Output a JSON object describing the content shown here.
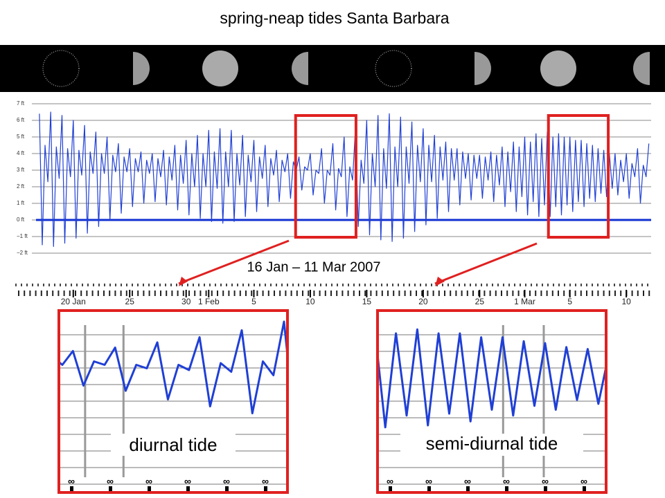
{
  "chart_data": {
    "type": "line",
    "title": "spring-neap tides Santa Barbara",
    "subtitle": "16 Jan – 11 Mar 2007",
    "color": "#1f3fd6",
    "baseline": 0,
    "baseline_color": "#1030d0",
    "grid": true,
    "xlim": [
      16.7,
      71.2
    ],
    "ylim": [
      -2,
      7
    ],
    "xticks": [
      {
        "value": 20,
        "label": "20 Jan"
      },
      25,
      30,
      {
        "value": 32,
        "label": "1 Feb"
      },
      {
        "value": 36,
        "label": "5"
      },
      {
        "value": 41,
        "label": "10"
      },
      {
        "value": 46,
        "label": "15"
      },
      {
        "value": 51,
        "label": "20"
      },
      {
        "value": 56,
        "label": "25"
      },
      {
        "value": 60,
        "label": "1 Mar"
      },
      {
        "value": 64,
        "label": "5"
      },
      {
        "value": 69,
        "label": "10"
      }
    ],
    "yticks": [
      {
        "value": 7,
        "label": "7 ft"
      },
      {
        "value": 6,
        "label": "6 ft"
      },
      {
        "value": 5,
        "label": "5 ft"
      },
      {
        "value": 4,
        "label": "4 ft"
      },
      {
        "value": 3,
        "label": "3 ft"
      },
      {
        "value": 2,
        "label": "2 ft"
      },
      {
        "value": 1,
        "label": "1 ft"
      },
      {
        "value": 0,
        "label": "0 ft"
      },
      {
        "value": -1,
        "label": "−1 ft"
      },
      {
        "value": -2,
        "label": "−2 ft"
      }
    ],
    "highlight_color": "#e02020",
    "highlights": [
      {
        "label": "diurnal tide",
        "xlim": [
          39.7,
          45.05
        ],
        "ylim": [
          -0.5,
          5.5
        ]
      },
      {
        "label": "semi-diurnal tide",
        "xlim": [
          62.1,
          67.4
        ],
        "ylim": [
          0.3,
          5.6
        ]
      }
    ],
    "x": [
      17,
      17.25,
      17.5,
      17.75,
      18,
      18.25,
      18.5,
      18.75,
      19,
      19.25,
      19.5,
      19.75,
      20,
      20.25,
      20.5,
      20.75,
      21,
      21.25,
      21.5,
      21.75,
      22,
      22.25,
      22.5,
      22.75,
      23,
      23.25,
      23.5,
      23.75,
      24,
      24.25,
      24.5,
      24.75,
      25,
      25.25,
      25.5,
      25.75,
      26,
      26.25,
      26.5,
      26.75,
      27,
      27.25,
      27.5,
      27.75,
      28,
      28.25,
      28.5,
      28.75,
      29,
      29.25,
      29.5,
      29.75,
      30,
      30.25,
      30.5,
      30.75,
      31,
      31.25,
      31.5,
      31.75,
      32,
      32.25,
      32.5,
      32.75,
      33,
      33.25,
      33.5,
      33.75,
      34,
      34.25,
      34.5,
      34.75,
      35,
      35.25,
      35.5,
      35.75,
      36,
      36.25,
      36.5,
      36.75,
      37,
      37.25,
      37.5,
      37.75,
      38,
      38.25,
      38.5,
      38.75,
      39,
      39.25,
      39.5,
      39.75,
      40,
      40.25,
      40.5,
      40.75,
      41,
      41.25,
      41.5,
      41.75,
      42,
      42.25,
      42.5,
      42.75,
      43,
      43.25,
      43.5,
      43.75,
      44,
      44.25,
      44.5,
      44.75,
      45,
      45.25,
      45.5,
      45.75,
      46,
      46.25,
      46.5,
      46.75,
      47,
      47.25,
      47.5,
      47.75,
      48,
      48.25,
      48.5,
      48.75,
      49,
      49.25,
      49.5,
      49.75,
      50,
      50.25,
      50.5,
      50.75,
      51,
      51.25,
      51.5,
      51.75,
      52,
      52.25,
      52.5,
      52.75,
      53,
      53.25,
      53.5,
      53.75,
      54,
      54.25,
      54.5,
      54.75,
      55,
      55.25,
      55.5,
      55.75,
      56,
      56.25,
      56.5,
      56.75,
      57,
      57.25,
      57.5,
      57.75,
      58,
      58.25,
      58.5,
      58.75,
      59,
      59.25,
      59.5,
      59.75,
      60,
      60.25,
      60.5,
      60.75,
      61,
      61.25,
      61.5,
      61.75,
      62,
      62.25,
      62.5,
      62.75,
      63,
      63.25,
      63.5,
      63.75,
      64,
      64.25,
      64.5,
      64.75,
      65,
      65.25,
      65.5,
      65.75,
      66,
      66.25,
      66.5,
      66.75,
      67,
      67.25,
      67.5,
      67.75,
      68,
      68.25,
      68.5,
      68.75,
      69,
      69.25,
      69.5,
      69.75,
      70,
      70.25,
      70.5,
      70.75,
      71
    ],
    "values": [
      6.4,
      -1.5,
      4.5,
      2.3,
      6.5,
      -1.6,
      4.4,
      2.5,
      6.3,
      -1.4,
      4.3,
      2.6,
      6.0,
      -1.1,
      4.2,
      2.7,
      5.7,
      -0.8,
      4.1,
      2.8,
      5.3,
      -0.4,
      4.0,
      2.8,
      5.0,
      0.0,
      3.9,
      2.9,
      4.6,
      0.4,
      3.8,
      2.9,
      4.3,
      0.8,
      3.7,
      2.9,
      4.1,
      1.0,
      3.6,
      2.8,
      4.0,
      1.1,
      3.7,
      2.6,
      4.2,
      0.9,
      3.8,
      2.4,
      4.5,
      0.6,
      3.9,
      2.2,
      4.8,
      0.3,
      4.0,
      2.0,
      5.1,
      0.1,
      4.0,
      2.0,
      5.4,
      -0.1,
      4.1,
      1.9,
      5.5,
      -0.2,
      4.1,
      2.0,
      5.4,
      -0.1,
      4.0,
      2.1,
      5.1,
      0.2,
      3.9,
      2.3,
      4.8,
      0.5,
      3.8,
      2.5,
      4.5,
      0.8,
      3.7,
      2.7,
      4.2,
      1.1,
      3.6,
      2.9,
      4.0,
      1.3,
      3.5,
      3.0,
      3.8,
      1.8,
      3.2,
      3.0,
      4.0,
      1.5,
      3.0,
      2.8,
      4.3,
      1.0,
      3.0,
      2.7,
      4.6,
      0.6,
      3.1,
      2.6,
      5.0,
      0.2,
      3.2,
      2.4,
      5.5,
      -0.4,
      3.6,
      2.2,
      6.0,
      -0.9,
      4.0,
      2.0,
      6.3,
      -1.2,
      4.3,
      1.9,
      6.4,
      -1.3,
      4.4,
      2.0,
      6.2,
      -1.1,
      4.4,
      2.2,
      5.9,
      -0.7,
      4.5,
      2.3,
      5.5,
      -0.3,
      4.5,
      2.3,
      5.1,
      0.1,
      4.4,
      2.4,
      4.7,
      0.5,
      4.3,
      2.4,
      4.3,
      0.9,
      4.1,
      2.5,
      4.0,
      1.2,
      3.9,
      2.5,
      3.9,
      1.3,
      3.8,
      2.4,
      4.1,
      1.1,
      3.9,
      2.1,
      4.4,
      0.8,
      4.1,
      1.7,
      4.7,
      0.5,
      4.4,
      1.4,
      5.0,
      0.3,
      4.7,
      1.1,
      5.2,
      0.2,
      4.9,
      0.9,
      5.3,
      0.2,
      5.0,
      0.8,
      5.2,
      0.3,
      5.0,
      0.9,
      5.0,
      0.5,
      4.8,
      1.1,
      4.8,
      0.8,
      4.6,
      1.3,
      4.5,
      1.1,
      4.3,
      1.6,
      4.2,
      1.4,
      4.0,
      1.9,
      4.0,
      1.5,
      3.6,
      2.3,
      4.0,
      1.3,
      3.4,
      2.6,
      4.3,
      1.0,
      3.3,
      2.6,
      4.6
    ]
  }
}
